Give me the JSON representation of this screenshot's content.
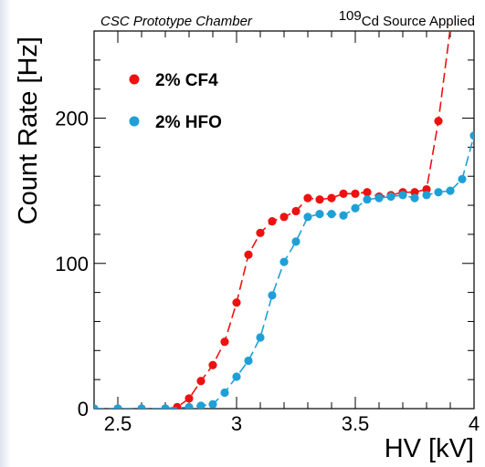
{
  "chart_data": {
    "type": "line",
    "xlabel": "HV [kV]",
    "ylabel": "Count Rate [Hz]",
    "xlim": [
      2.4,
      4.0
    ],
    "ylim": [
      0,
      260
    ],
    "xticks": [
      2.5,
      3,
      3.5,
      4
    ],
    "xtick_labels": [
      "2.5",
      "3",
      "3.5",
      "4"
    ],
    "yticks": [
      0,
      100,
      200
    ],
    "ytick_labels": [
      "0",
      "100",
      "200"
    ],
    "annotations": {
      "left": "CSC Prototype Chamber",
      "right_sup": "109",
      "right_text": "Cd Source Applied"
    },
    "legend_position": "top-left",
    "series": [
      {
        "name": "2% CF4",
        "color": "#ee1111",
        "x": [
          2.4,
          2.5,
          2.6,
          2.7,
          2.75,
          2.8,
          2.85,
          2.9,
          2.95,
          3.0,
          3.05,
          3.1,
          3.15,
          3.2,
          3.25,
          3.3,
          3.35,
          3.4,
          3.45,
          3.5,
          3.55,
          3.6,
          3.65,
          3.7,
          3.75,
          3.8,
          3.85,
          3.9
        ],
        "y": [
          0,
          0,
          0,
          0,
          1,
          7,
          19,
          30,
          46,
          73,
          106,
          121,
          129,
          132,
          136,
          145,
          144,
          145,
          148,
          148,
          149,
          146,
          147,
          149,
          149,
          151,
          198,
          262
        ]
      },
      {
        "name": "2% HFO",
        "color": "#1ea0d6",
        "x": [
          2.4,
          2.5,
          2.6,
          2.7,
          2.8,
          2.85,
          2.9,
          2.95,
          3.0,
          3.05,
          3.1,
          3.15,
          3.2,
          3.25,
          3.3,
          3.35,
          3.4,
          3.45,
          3.5,
          3.55,
          3.6,
          3.65,
          3.7,
          3.75,
          3.8,
          3.85,
          3.9,
          3.95,
          4.0
        ],
        "y": [
          0,
          0,
          0,
          0,
          1,
          2,
          3,
          11,
          22,
          33,
          49,
          78,
          101,
          115,
          132,
          134,
          134,
          133,
          138,
          144,
          145,
          146,
          147,
          145,
          147,
          149,
          150,
          158,
          188
        ]
      }
    ]
  }
}
